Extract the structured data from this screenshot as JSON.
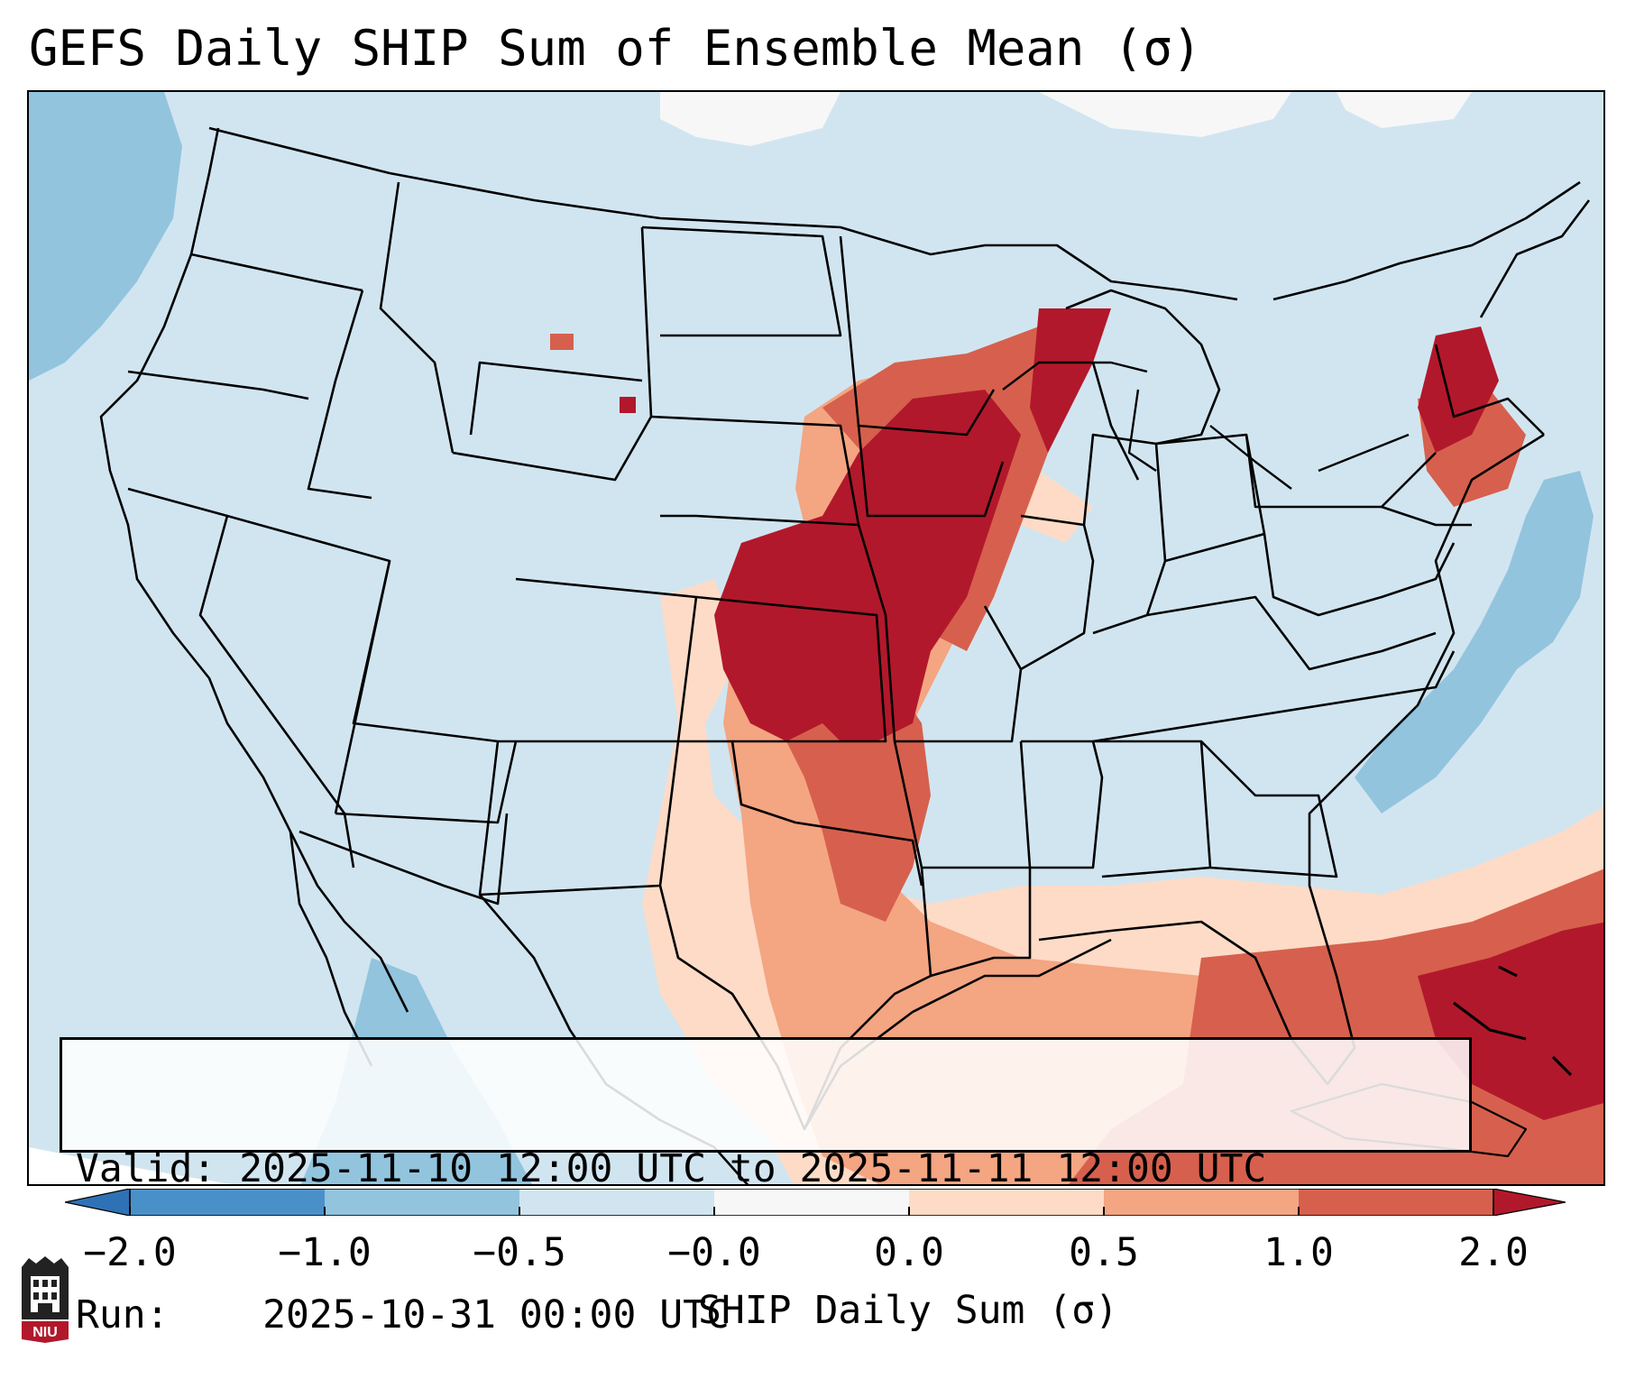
{
  "title": "GEFS Daily SHIP Sum of Ensemble Mean (σ)",
  "info": {
    "valid_label": "Valid:",
    "valid_value": "2025-11-10 12:00 UTC to 2025-11-11 12:00 UTC",
    "run_label": "Run:",
    "run_value": "2025-10-31 00:00 UTC"
  },
  "colorbar": {
    "label": "SHIP Daily Sum (σ)",
    "tick_labels": [
      "−2.0",
      "−1.0",
      "−0.5",
      "−0.0",
      "0.0",
      "0.5",
      "1.0",
      "2.0"
    ],
    "bins": [
      {
        "range": "below -2.0",
        "color": "#2e72b5"
      },
      {
        "range": "-2.0 to -1.0",
        "color": "#4a90c8"
      },
      {
        "range": "-1.0 to -0.5",
        "color": "#92c4de"
      },
      {
        "range": "-0.5 to -0.0",
        "color": "#d1e5f0"
      },
      {
        "range": "-0.0 to 0.0",
        "color": "#f7f7f7"
      },
      {
        "range": "0.0 to 0.5",
        "color": "#fddbc7"
      },
      {
        "range": "0.5 to 1.0",
        "color": "#f4a582"
      },
      {
        "range": "1.0 to 2.0",
        "color": "#d6604d"
      },
      {
        "range": "above 2.0",
        "color": "#b2182b"
      }
    ]
  },
  "map": {
    "region": "Continental United States",
    "background_color": "#d1e5f0",
    "boundary_color": "#000000"
  },
  "logo": {
    "text": "NIU"
  }
}
